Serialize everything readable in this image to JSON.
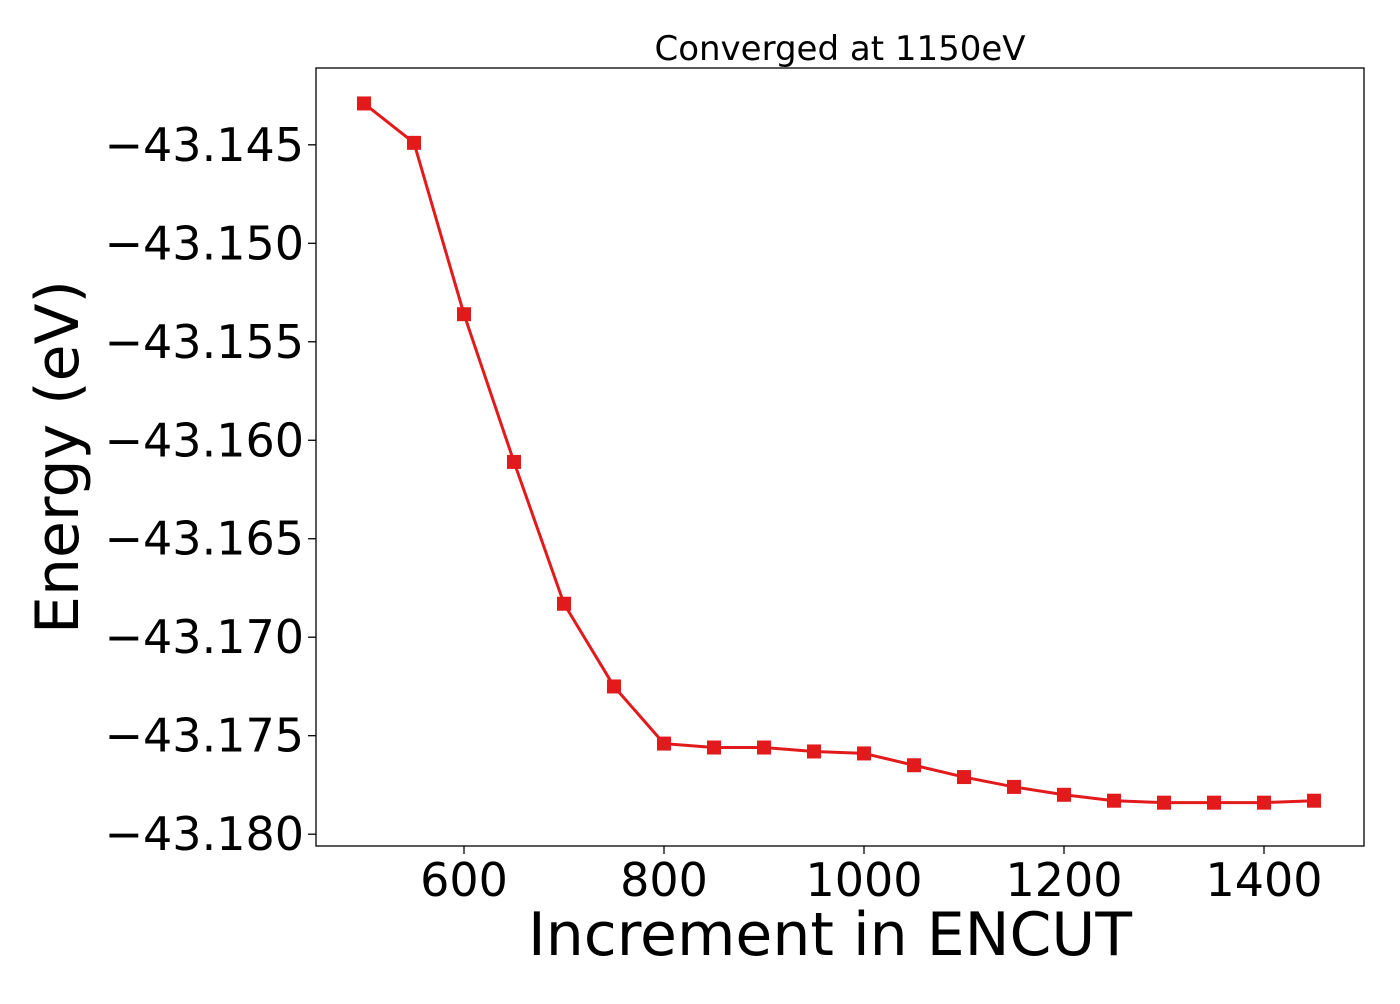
{
  "chart_data": {
    "type": "line",
    "title": "Converged at 1150eV",
    "xlabel": "Increment in ENCUT",
    "ylabel": "Energy (eV)",
    "xlim": [
      452,
      1500
    ],
    "ylim": [
      -43.1806,
      -43.1411
    ],
    "xticks": [
      600,
      800,
      1000,
      1200,
      1400
    ],
    "xtick_labels": [
      "600",
      "800",
      "1000",
      "1200",
      "1400"
    ],
    "yticks": [
      -43.145,
      -43.15,
      -43.155,
      -43.16,
      -43.165,
      -43.17,
      -43.175,
      -43.18
    ],
    "ytick_labels": [
      "−43.145",
      "−43.150",
      "−43.155",
      "−43.160",
      "−43.165",
      "−43.170",
      "−43.175",
      "−43.180"
    ],
    "grid": false,
    "legend": null,
    "series": [
      {
        "color": "#e31a1c",
        "marker": "square",
        "x": [
          500,
          550,
          600,
          650,
          700,
          750,
          800,
          850,
          900,
          950,
          1000,
          1050,
          1100,
          1150,
          1200,
          1250,
          1300,
          1350,
          1400,
          1450
        ],
        "y": [
          -43.1429,
          -43.1449,
          -43.1536,
          -43.1611,
          -43.1683,
          -43.1725,
          -43.1754,
          -43.1756,
          -43.1756,
          -43.1758,
          -43.1759,
          -43.1765,
          -43.1771,
          -43.1776,
          -43.178,
          -43.1783,
          -43.1784,
          -43.1784,
          -43.1784,
          -43.1783
        ]
      }
    ]
  }
}
